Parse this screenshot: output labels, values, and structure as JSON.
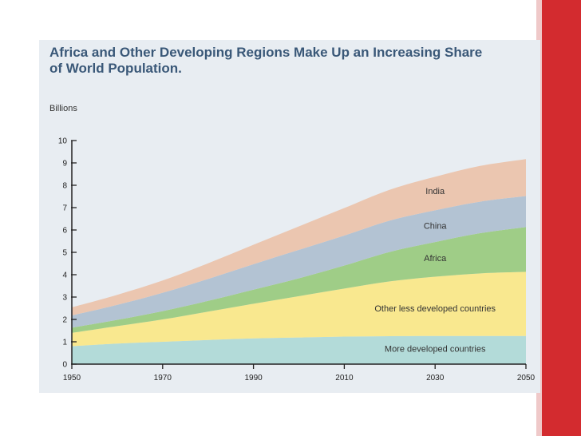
{
  "chart_data": {
    "type": "area",
    "stacked": true,
    "title_line1": "Africa and Other Developing Regions Make Up an Increasing Share",
    "title_line2": "of World Population.",
    "ylabel": "Billions",
    "xlabel": "",
    "ylim": [
      0,
      10
    ],
    "xlim": [
      1950,
      2050
    ],
    "yticks": [
      0,
      1,
      2,
      3,
      4,
      5,
      6,
      7,
      8,
      9,
      10
    ],
    "ytick_labels": [
      "0",
      "1",
      "2",
      "3",
      "4",
      "5",
      "6",
      "7",
      "8",
      "9",
      "10"
    ],
    "xticks": [
      1950,
      1970,
      1990,
      2010,
      2030,
      2050
    ],
    "xtick_labels": [
      "1950",
      "1970",
      "1990",
      "2010",
      "2030",
      "2050"
    ],
    "x": [
      1950,
      1960,
      1970,
      1980,
      1990,
      2000,
      2010,
      2020,
      2030,
      2040,
      2050
    ],
    "series": [
      {
        "name": "More developed countries",
        "color": "#b3dbd9",
        "values": [
          0.8,
          0.92,
          1.0,
          1.08,
          1.15,
          1.19,
          1.23,
          1.25,
          1.26,
          1.26,
          1.26
        ]
      },
      {
        "name": "Other less developed countries",
        "color": "#f9e88f",
        "values": [
          0.6,
          0.78,
          1.0,
          1.27,
          1.55,
          1.85,
          2.15,
          2.45,
          2.65,
          2.8,
          2.87
        ]
      },
      {
        "name": "Africa",
        "color": "#9fcd87",
        "values": [
          0.23,
          0.28,
          0.37,
          0.48,
          0.63,
          0.8,
          1.03,
          1.32,
          1.55,
          1.8,
          2.0
        ]
      },
      {
        "name": "China",
        "color": "#b3c3d3",
        "values": [
          0.55,
          0.67,
          0.82,
          0.98,
          1.14,
          1.27,
          1.34,
          1.4,
          1.42,
          1.41,
          1.39
        ]
      },
      {
        "name": "India",
        "color": "#ebc6b0",
        "values": [
          0.36,
          0.45,
          0.55,
          0.7,
          0.87,
          1.05,
          1.23,
          1.38,
          1.5,
          1.6,
          1.65
        ]
      }
    ],
    "label_anchors": [
      {
        "series": "India",
        "x": 2030,
        "y": 7.6
      },
      {
        "series": "China",
        "x": 2030,
        "y": 6.05
      },
      {
        "series": "Africa",
        "x": 2030,
        "y": 4.6
      },
      {
        "series": "Other less developed countries",
        "x": 2030,
        "y": 2.35
      },
      {
        "series": "More developed countries",
        "x": 2030,
        "y": 0.55
      }
    ]
  }
}
